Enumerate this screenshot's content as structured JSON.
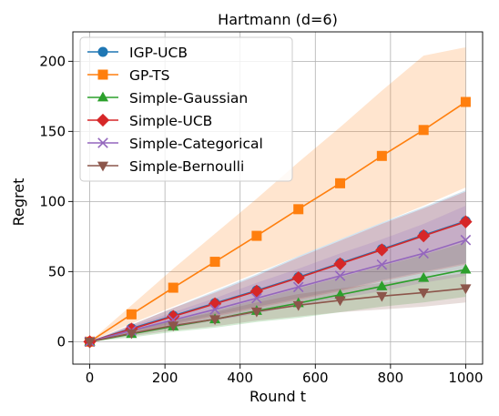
{
  "chart_data": {
    "type": "line",
    "title": "Hartmann (d=6)",
    "xlabel": "Round t",
    "ylabel": "Regret",
    "xlim": [
      -45,
      1045
    ],
    "ylim": [
      -16,
      221
    ],
    "xticks": [
      0,
      200,
      400,
      600,
      800,
      1000
    ],
    "yticks": [
      0,
      50,
      100,
      150,
      200
    ],
    "grid": true,
    "legend_position": "top-left",
    "x": [
      0,
      111,
      222,
      333,
      444,
      555,
      666,
      777,
      888,
      1000
    ],
    "series": [
      {
        "name": "IGP-UCB",
        "color": "#1f77b4",
        "marker": "circle",
        "values": [
          0,
          9.5,
          18.5,
          27.5,
          36.5,
          46,
          56,
          66,
          76,
          86
        ],
        "band_lower": [
          0,
          7,
          13,
          19,
          25,
          31,
          37,
          44,
          50,
          56
        ],
        "band_upper": [
          0,
          12,
          24,
          36,
          48,
          61,
          73,
          85,
          96,
          108
        ]
      },
      {
        "name": "GP-TS",
        "color": "#ff7f0e",
        "marker": "square",
        "values": [
          0,
          19.5,
          38.5,
          57,
          75.5,
          94.5,
          113,
          132.5,
          151,
          171
        ],
        "band_lower": [
          0,
          13,
          25,
          37,
          49,
          61,
          73,
          85,
          97,
          110
        ],
        "band_upper": [
          0,
          26,
          52,
          77,
          102,
          128,
          153,
          179,
          204,
          210
        ]
      },
      {
        "name": "Simple-Gaussian",
        "color": "#2ca02c",
        "marker": "triangle-up",
        "values": [
          0,
          5.5,
          11,
          16,
          22,
          27.5,
          33.5,
          39.5,
          45.5,
          51.5
        ],
        "band_lower": [
          0,
          3,
          7,
          10,
          14,
          17,
          21,
          25,
          28,
          32
        ],
        "band_upper": [
          0,
          8,
          15,
          22,
          30,
          38,
          46,
          54,
          62,
          71
        ]
      },
      {
        "name": "Simple-UCB",
        "color": "#d62728",
        "marker": "diamond",
        "values": [
          0,
          9,
          18,
          27,
          36,
          45.5,
          55.5,
          65.5,
          75.5,
          85.5
        ],
        "band_lower": [
          0,
          6,
          12,
          18,
          24,
          30,
          36,
          43,
          49,
          55
        ],
        "band_upper": [
          0,
          12,
          24,
          35,
          47,
          60,
          72,
          84,
          95,
          107
        ]
      },
      {
        "name": "Simple-Categorical",
        "color": "#9467bd",
        "marker": "x",
        "values": [
          0,
          8,
          15.5,
          23,
          31,
          39,
          47,
          55,
          63,
          72.5
        ],
        "band_lower": [
          0,
          5,
          10,
          15,
          20,
          26,
          31,
          36,
          42,
          47
        ],
        "band_upper": [
          0,
          11,
          21,
          31,
          42,
          52,
          63,
          73,
          84,
          97
        ]
      },
      {
        "name": "Simple-Bernoulli",
        "color": "#8c564b",
        "marker": "triangle-down",
        "values": [
          0,
          6,
          11.5,
          16,
          21.5,
          26,
          29.5,
          32.5,
          35,
          38
        ],
        "band_lower": [
          0,
          4,
          8,
          11,
          15,
          18,
          21,
          23,
          25,
          28
        ],
        "band_upper": [
          0,
          8,
          15,
          21,
          28,
          34,
          38,
          42,
          45,
          49
        ]
      }
    ]
  }
}
